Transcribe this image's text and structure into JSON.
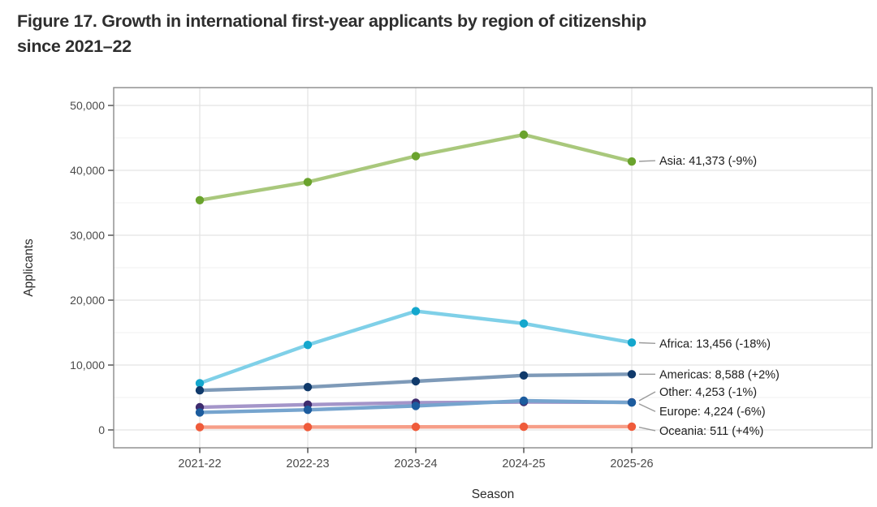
{
  "figure": {
    "title_line1": "Figure 17. Growth in international first-year applicants by region of citizenship",
    "title_line2": "since 2021–22"
  },
  "chart_data": {
    "type": "line",
    "x": [
      "2021-22",
      "2022-23",
      "2023-24",
      "2024-25",
      "2025-26"
    ],
    "xlabel": "Season",
    "ylabel": "Applicants",
    "ylim": [
      0,
      50000
    ],
    "yticks": [
      0,
      10000,
      20000,
      30000,
      40000,
      50000
    ],
    "ytick_labels": [
      "0",
      "10,000",
      "20,000",
      "30,000",
      "40,000",
      "50,000"
    ],
    "grid": true,
    "legend_position": "right-annotations",
    "series": [
      {
        "name": "Asia",
        "values": [
          35400,
          38200,
          42200,
          45500,
          41373
        ],
        "line_color": "#a9c87c",
        "point_color": "#6aa32d",
        "end_label": "Asia: 41,373 (-9%)"
      },
      {
        "name": "Africa",
        "values": [
          7200,
          13100,
          18300,
          16400,
          13456
        ],
        "line_color": "#7fd0e8",
        "point_color": "#14a7cd",
        "end_label": "Africa: 13,456 (-18%)"
      },
      {
        "name": "Americas",
        "values": [
          6100,
          6600,
          7500,
          8400,
          8588
        ],
        "line_color": "#7e9ab8",
        "point_color": "#103a6b",
        "end_label": "Americas: 8,588 (+2%)"
      },
      {
        "name": "Other",
        "values": [
          3500,
          3900,
          4200,
          4300,
          4253
        ],
        "line_color": "#a495c9",
        "point_color": "#3e2b6e",
        "end_label": "Other: 4,253 (-1%)"
      },
      {
        "name": "Europe",
        "values": [
          2700,
          3100,
          3700,
          4500,
          4224
        ],
        "line_color": "#76a4ce",
        "point_color": "#1c5c9e",
        "end_label": "Europe: 4,224 (-6%)"
      },
      {
        "name": "Oceania",
        "values": [
          430,
          450,
          470,
          490,
          511
        ],
        "line_color": "#f69e88",
        "point_color": "#ef5b3b",
        "end_label": "Oceania: 511 (+4%)"
      }
    ],
    "annotation_text_color": "#1c1c1c",
    "leader_line_color": "#9b9b9b"
  }
}
